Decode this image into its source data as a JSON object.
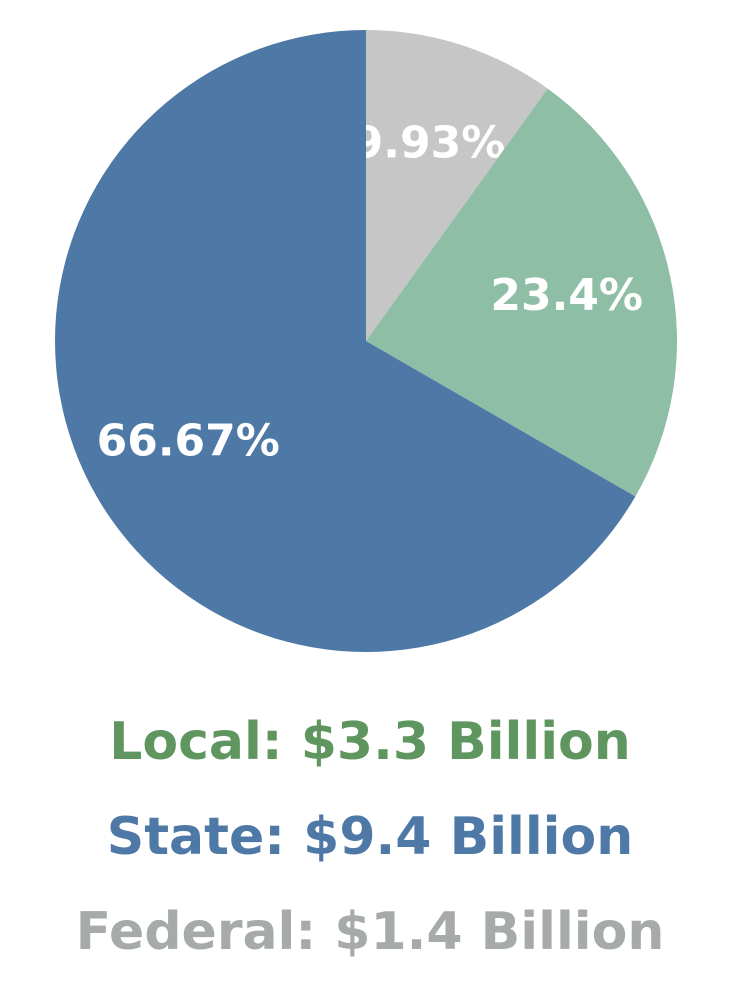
{
  "chart_data": {
    "type": "pie",
    "categories": [
      null,
      null,
      null
    ],
    "values": [
      9.93,
      23.4,
      66.67
    ],
    "value_labels": [
      "9.93%",
      "23.4%",
      "66.67%"
    ],
    "colors": [
      "#c5c6c5",
      "#8fbea6",
      "#4e79a7"
    ],
    "legend": [
      {
        "text": "Local: $3.3 Billion",
        "color": "#5f9660"
      },
      {
        "text": "State: $9.4 Billion",
        "color": "#4e79a7"
      },
      {
        "text": "Federal: $1.4 Billion",
        "color": "#a7aaaa"
      }
    ]
  }
}
